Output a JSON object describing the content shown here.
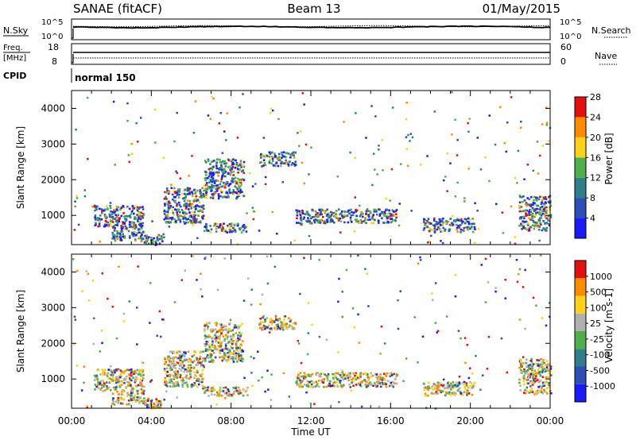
{
  "header": {
    "station": "SANAE (fitACF)",
    "beam": "Beam 13",
    "date": "01/May/2015"
  },
  "noise_panel": {
    "left_label": "N.Sky",
    "right_label": "N.Search",
    "left_ticks": [
      "10^5",
      "10^0"
    ],
    "right_ticks": [
      "10^5",
      "10^0"
    ]
  },
  "freq_panel": {
    "left_label_1": "Freq.",
    "left_label_2": "[MHz]",
    "right_label": "Nave",
    "left_ticks": [
      "18",
      "8"
    ],
    "right_ticks": [
      "60",
      "0"
    ]
  },
  "cpid": {
    "label": "CPID",
    "value": "normal 150"
  },
  "x_axis": {
    "label": "Time UT",
    "ticks": [
      "00:00",
      "04:00",
      "08:00",
      "12:00",
      "16:00",
      "20:00",
      "00:00"
    ]
  },
  "chart_data": [
    {
      "type": "heatmap",
      "name": "power",
      "ylabel": "Slant Range [km]",
      "yticks": [
        "1000",
        "2000",
        "3000",
        "4000"
      ],
      "ylim": [
        180,
        4500
      ],
      "xlim_hours": [
        0,
        24
      ],
      "colorbar_label": "Power [dB]",
      "colorbar_ticks": [
        "4",
        "8",
        "12",
        "16",
        "20",
        "24",
        "28"
      ],
      "colorbar_colors": [
        "#1a1aff",
        "#2b4fb5",
        "#2f7f8a",
        "#4fb04a",
        "#ffd21a",
        "#ff8c00",
        "#e41010"
      ],
      "regions": [
        {
          "t_start": 1.1,
          "t_end": 2.0,
          "r_start": 700,
          "r_end": 1300
        },
        {
          "t_start": 2.0,
          "t_end": 3.6,
          "r_start": 300,
          "r_end": 1300
        },
        {
          "t_start": 3.6,
          "t_end": 4.6,
          "r_start": 180,
          "r_end": 500
        },
        {
          "t_start": 4.6,
          "t_end": 6.6,
          "r_start": 800,
          "r_end": 1800
        },
        {
          "t_start": 6.6,
          "t_end": 8.6,
          "r_start": 1500,
          "r_end": 2600
        },
        {
          "t_start": 6.5,
          "t_end": 8.8,
          "r_start": 550,
          "r_end": 800
        },
        {
          "t_start": 9.4,
          "t_end": 11.2,
          "r_start": 2400,
          "r_end": 2800
        },
        {
          "t_start": 11.2,
          "t_end": 16.3,
          "r_start": 800,
          "r_end": 1200
        },
        {
          "t_start": 17.6,
          "t_end": 20.2,
          "r_start": 550,
          "r_end": 950
        },
        {
          "t_start": 22.4,
          "t_end": 24.0,
          "r_start": 600,
          "r_end": 1600
        }
      ]
    },
    {
      "type": "heatmap",
      "name": "velocity",
      "ylabel": "Slant Range [km]",
      "yticks": [
        "1000",
        "2000",
        "3000",
        "4000"
      ],
      "ylim": [
        180,
        4500
      ],
      "xlim_hours": [
        0,
        24
      ],
      "colorbar_label": "Velocity [m s-1]",
      "colorbar_ticks": [
        "1000",
        "500",
        "100",
        "25",
        "-25",
        "-100",
        "-500",
        "-1000"
      ],
      "colorbar_colors": [
        "#1a1aff",
        "#2b4fb5",
        "#2f7f8a",
        "#4fb04a",
        "#b0b0b0",
        "#ffd21a",
        "#ff8c00",
        "#e41010"
      ],
      "regions": [
        {
          "t_start": 1.1,
          "t_end": 2.0,
          "r_start": 700,
          "r_end": 1300
        },
        {
          "t_start": 2.0,
          "t_end": 3.6,
          "r_start": 300,
          "r_end": 1300
        },
        {
          "t_start": 3.6,
          "t_end": 4.6,
          "r_start": 180,
          "r_end": 500
        },
        {
          "t_start": 4.6,
          "t_end": 6.6,
          "r_start": 800,
          "r_end": 1800
        },
        {
          "t_start": 6.6,
          "t_end": 8.6,
          "r_start": 1500,
          "r_end": 2600
        },
        {
          "t_start": 6.5,
          "t_end": 8.8,
          "r_start": 550,
          "r_end": 800
        },
        {
          "t_start": 9.4,
          "t_end": 11.2,
          "r_start": 2400,
          "r_end": 2800
        },
        {
          "t_start": 11.2,
          "t_end": 16.3,
          "r_start": 800,
          "r_end": 1200
        },
        {
          "t_start": 17.6,
          "t_end": 20.2,
          "r_start": 550,
          "r_end": 950
        },
        {
          "t_start": 22.4,
          "t_end": 24.0,
          "r_start": 600,
          "r_end": 1600
        }
      ]
    }
  ]
}
